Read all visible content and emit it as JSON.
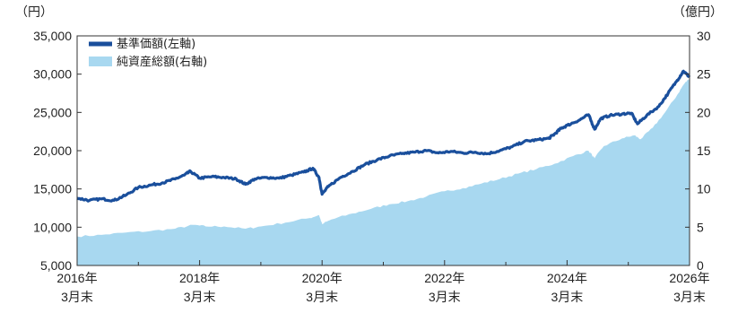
{
  "chart_data": {
    "type": "line",
    "title": "",
    "left_axis": {
      "unit": "（円）",
      "min": 5000,
      "max": 35000,
      "ticks": [
        "5,000",
        "10,000",
        "15,000",
        "20,000",
        "25,000",
        "30,000",
        "35,000"
      ],
      "tick_values": [
        5000,
        10000,
        15000,
        20000,
        25000,
        30000,
        35000
      ]
    },
    "right_axis": {
      "unit": "（億円）",
      "min": 0,
      "max": 30,
      "ticks": [
        "0",
        "5",
        "10",
        "15",
        "20",
        "25",
        "30"
      ],
      "tick_values": [
        0,
        5,
        10,
        15,
        20,
        25,
        30
      ]
    },
    "x_axis": {
      "min": 2016.2,
      "max": 2026.2,
      "ticks": [
        {
          "value": 2016.2,
          "year": "2016年",
          "month": "3月末"
        },
        {
          "value": 2018.2,
          "year": "2018年",
          "month": "3月末"
        },
        {
          "value": 2020.2,
          "year": "2020年",
          "month": "3月末"
        },
        {
          "value": 2022.2,
          "year": "2022年",
          "month": "3月末"
        },
        {
          "value": 2024.2,
          "year": "2024年",
          "month": "3月末"
        },
        {
          "value": 2026.2,
          "year": "2026年",
          "month": "3月末"
        }
      ]
    },
    "legend": {
      "placement": "top-left",
      "items": [
        {
          "label": "基準価額(左軸)",
          "color": "#1a4f9c",
          "kind": "line"
        },
        {
          "label": "純資産総額(右軸)",
          "color": "#a8d8f0",
          "kind": "area"
        }
      ]
    },
    "series": [
      {
        "name": "基準価額(左軸)",
        "axis": "left",
        "color": "#1a4f9c",
        "points": [
          [
            2016.2,
            13800
          ],
          [
            2016.4,
            13500
          ],
          [
            2016.6,
            13700
          ],
          [
            2016.8,
            13500
          ],
          [
            2017.0,
            14200
          ],
          [
            2017.2,
            15200
          ],
          [
            2017.4,
            15500
          ],
          [
            2017.6,
            15800
          ],
          [
            2017.8,
            16300
          ],
          [
            2017.95,
            16800
          ],
          [
            2018.05,
            17300
          ],
          [
            2018.2,
            16400
          ],
          [
            2018.4,
            16600
          ],
          [
            2018.6,
            16500
          ],
          [
            2018.8,
            16300
          ],
          [
            2018.95,
            15600
          ],
          [
            2019.1,
            16300
          ],
          [
            2019.3,
            16500
          ],
          [
            2019.5,
            16400
          ],
          [
            2019.7,
            16800
          ],
          [
            2019.9,
            17200
          ],
          [
            2020.05,
            17700
          ],
          [
            2020.15,
            16500
          ],
          [
            2020.2,
            14300
          ],
          [
            2020.3,
            15300
          ],
          [
            2020.5,
            16500
          ],
          [
            2020.7,
            17300
          ],
          [
            2020.9,
            18200
          ],
          [
            2021.1,
            18800
          ],
          [
            2021.3,
            19300
          ],
          [
            2021.5,
            19600
          ],
          [
            2021.7,
            19800
          ],
          [
            2021.9,
            20000
          ],
          [
            2022.1,
            19700
          ],
          [
            2022.3,
            19900
          ],
          [
            2022.5,
            19700
          ],
          [
            2022.7,
            19800
          ],
          [
            2022.9,
            19600
          ],
          [
            2023.1,
            20000
          ],
          [
            2023.3,
            20500
          ],
          [
            2023.5,
            21200
          ],
          [
            2023.7,
            21400
          ],
          [
            2023.9,
            21600
          ],
          [
            2024.0,
            22200
          ],
          [
            2024.1,
            22900
          ],
          [
            2024.2,
            23300
          ],
          [
            2024.4,
            24000
          ],
          [
            2024.55,
            24700
          ],
          [
            2024.65,
            22800
          ],
          [
            2024.75,
            24200
          ],
          [
            2024.9,
            24600
          ],
          [
            2025.1,
            24800
          ],
          [
            2025.25,
            24900
          ],
          [
            2025.35,
            23500
          ],
          [
            2025.5,
            24600
          ],
          [
            2025.7,
            25800
          ],
          [
            2025.85,
            27500
          ],
          [
            2026.0,
            29200
          ],
          [
            2026.1,
            30400
          ],
          [
            2026.2,
            29600
          ]
        ]
      },
      {
        "name": "純資産総額(右軸)",
        "axis": "right",
        "color": "#a8d8f0",
        "points": [
          [
            2016.2,
            3.8
          ],
          [
            2016.6,
            4.0
          ],
          [
            2017.0,
            4.3
          ],
          [
            2017.4,
            4.5
          ],
          [
            2017.8,
            4.8
          ],
          [
            2018.1,
            5.3
          ],
          [
            2018.3,
            5.1
          ],
          [
            2018.6,
            5.1
          ],
          [
            2018.95,
            4.8
          ],
          [
            2019.2,
            5.1
          ],
          [
            2019.6,
            5.6
          ],
          [
            2020.0,
            6.2
          ],
          [
            2020.15,
            6.6
          ],
          [
            2020.2,
            5.4
          ],
          [
            2020.35,
            6.0
          ],
          [
            2020.7,
            6.8
          ],
          [
            2021.0,
            7.4
          ],
          [
            2021.3,
            8.0
          ],
          [
            2021.6,
            8.4
          ],
          [
            2021.9,
            9.0
          ],
          [
            2022.2,
            9.7
          ],
          [
            2022.5,
            10.1
          ],
          [
            2022.8,
            10.7
          ],
          [
            2023.1,
            11.3
          ],
          [
            2023.4,
            12.0
          ],
          [
            2023.7,
            12.6
          ],
          [
            2024.0,
            13.3
          ],
          [
            2024.3,
            14.3
          ],
          [
            2024.55,
            15.0
          ],
          [
            2024.65,
            14.0
          ],
          [
            2024.8,
            15.6
          ],
          [
            2025.1,
            16.6
          ],
          [
            2025.3,
            17.0
          ],
          [
            2025.4,
            16.5
          ],
          [
            2025.6,
            18.0
          ],
          [
            2025.8,
            20.0
          ],
          [
            2026.0,
            22.3
          ],
          [
            2026.1,
            23.6
          ],
          [
            2026.2,
            24.5
          ]
        ]
      }
    ],
    "grid": false
  }
}
